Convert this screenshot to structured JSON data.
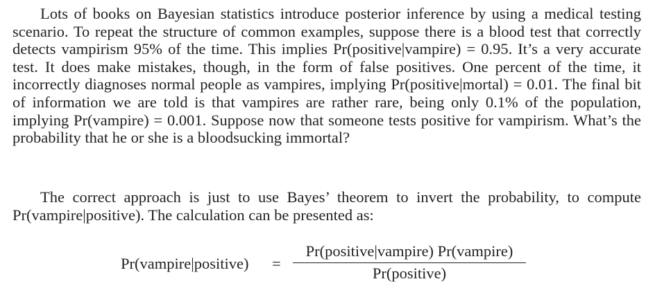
{
  "paragraphs": [
    "Lots of books on Bayesian statistics introduce posterior inference by using a medical testing scenario. To repeat the structure of common examples, suppose there is a blood test that correctly detects vampirism 95% of the time. This implies Pr(positive|vampire) = 0.95. It’s a very accurate test. It does make mistakes, though, in the form of false posi­tives. One percent of the time, it incorrectly diagnoses normal people as vampires, implying Pr(positive|mortal) = 0.01. The final bit of information we are told is that vampires are rather rare, being only 0.1% of the population, implying Pr(vampire) = 0.001. Suppose now that someone tests positive for vampirism. What’s the probability that he or she is a bloodsucking immortal?",
    "The correct approach is just to use Bayes’ theorem to invert the probability, to compute Pr(vampire|positive). The calculation can be presented as:"
  ],
  "equation": {
    "lhs": "Pr(vampire|positive)",
    "equals": "=",
    "numerator": "Pr(positive|vampire) Pr(vampire)",
    "denominator": "Pr(positive)"
  }
}
